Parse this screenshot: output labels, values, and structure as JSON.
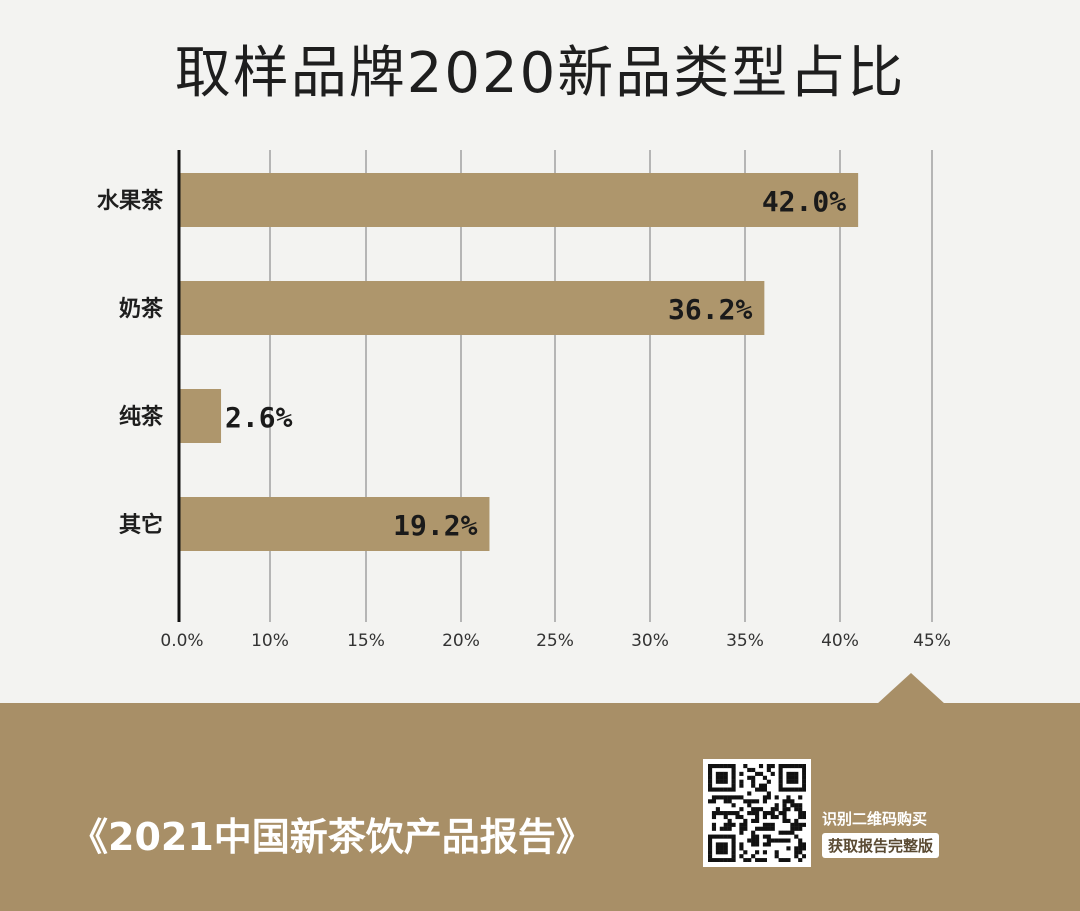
{
  "chart_data": {
    "type": "bar",
    "orientation": "horizontal",
    "title": "取样品牌2020新品类型占比",
    "categories": [
      "水果茶",
      "奶茶",
      "纯茶",
      "其它"
    ],
    "values": [
      42.0,
      36.2,
      2.6,
      19.2
    ],
    "data_labels": [
      "42.0%",
      "36.2%",
      "2.6%",
      "19.2%"
    ],
    "x_ticks": [
      "0.0%",
      "10%",
      "15%",
      "20%",
      "25%",
      "30%",
      "35%",
      "40%",
      "45%"
    ],
    "grid": true,
    "bar_color": "#ae966c"
  },
  "footer": {
    "report_title": "《2021中国新茶饮产品报告》",
    "promo_line1": "识别二维码购买",
    "promo_line2": "获取报告完整版",
    "bg_color": "#a88f67"
  },
  "qr_icon": "qr-code-icon"
}
